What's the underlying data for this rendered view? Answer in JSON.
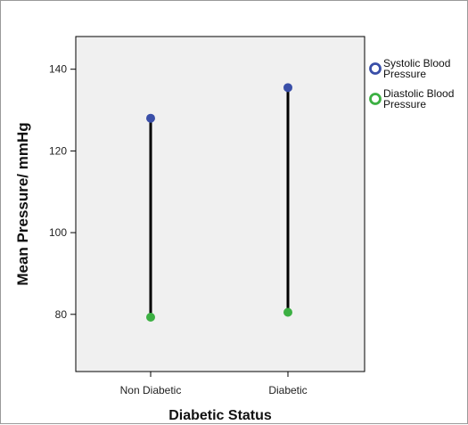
{
  "chart_data": {
    "type": "scatter",
    "categories": [
      "Non Diabetic",
      "Diabetic"
    ],
    "series": [
      {
        "name": "Systolic Blood Pressure",
        "values": [
          128,
          135.5
        ],
        "color": "#3a4fa8"
      },
      {
        "name": "Diastolic Blood Pressure",
        "values": [
          79.3,
          80.5
        ],
        "color": "#3cb043"
      }
    ],
    "xlabel": "Diabetic Status",
    "ylabel": "Mean Pressure/ mmHg",
    "ylim": [
      66,
      148
    ],
    "yticks": [
      80,
      100,
      120,
      140
    ],
    "drop_lines": true,
    "grid": false,
    "legend_position": "right"
  }
}
